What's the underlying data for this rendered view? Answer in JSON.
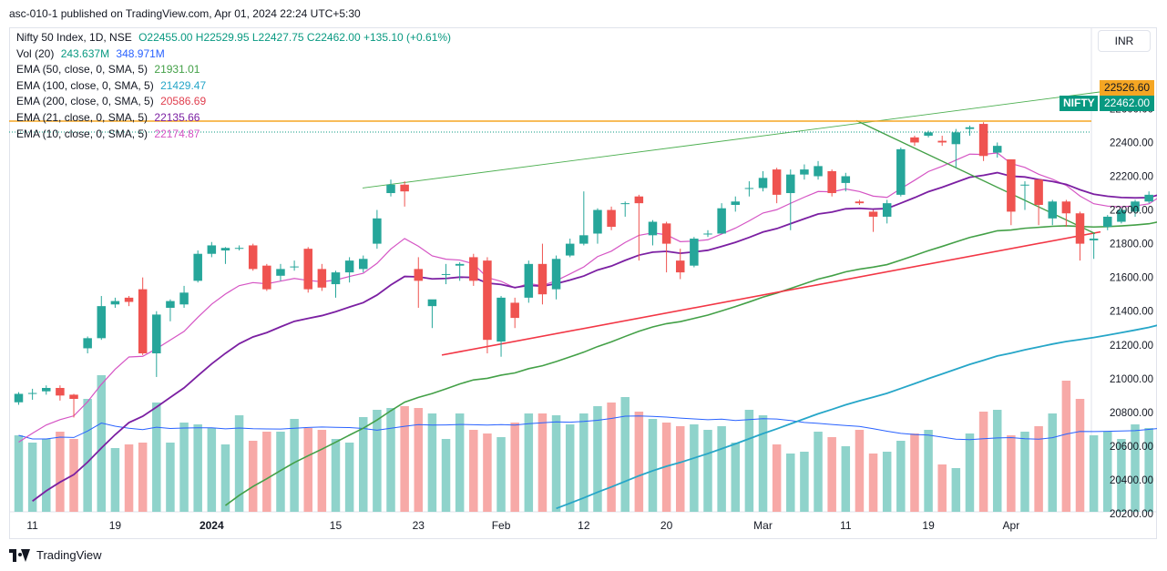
{
  "header": {
    "published": "asc-010-1 published on TradingView.com, Apr 01, 2024 22:24 UTC+5:30"
  },
  "currency": "INR",
  "legend": {
    "ohlc_label": "Nifty 50 Index, 1D, NSE",
    "ohlc_values": "O22455.00  H22529.95  L22427.75  C22462.00  +135.10 (+0.61%)",
    "vol": {
      "label": "Vol (20)",
      "v1": "243.637M",
      "v2": "348.971M"
    },
    "ema": [
      {
        "label": "EMA (50, close, 0, SMA, 5)",
        "value": "21931.01",
        "color": "#43a047"
      },
      {
        "label": "EMA (100, close, 0, SMA, 5)",
        "value": "21429.47",
        "color": "#26a6c8"
      },
      {
        "label": "EMA (200, close, 0, SMA, 5)",
        "value": "20586.69",
        "color": "#e03e4e"
      },
      {
        "label": "EMA (21, close, 0, SMA, 5)",
        "value": "22135.66",
        "color": "#7b1fa2"
      },
      {
        "label": "EMA (10, close, 0, SMA, 5)",
        "value": "22174.87",
        "color": "#d554c4"
      }
    ]
  },
  "price_tags": {
    "resistance": "22526.60",
    "symbol": "NIFTY",
    "last": "22462.00"
  },
  "footer": {
    "brand": "TradingView"
  },
  "colors": {
    "up": "#26a69a",
    "down": "#ef5350",
    "vol_up": "#8fd3cb",
    "vol_down": "#f7a9a7",
    "resistance": "#f5a623",
    "trend_up": "#f23645",
    "upper_channel": "#4caf50",
    "down_trend": "#43a047",
    "vol_ma": "#2962ff"
  },
  "chart_data": {
    "type": "candlestick",
    "symbol": "Nifty 50 Index",
    "interval": "1D",
    "y_ticks": [
      20200,
      20400,
      20600,
      20800,
      21000,
      21200,
      21400,
      21600,
      21800,
      22000,
      22200,
      22400,
      22600
    ],
    "y_tick_labels": [
      "20200.00",
      "20400.00",
      "20600.00",
      "20800.00",
      "21000.00",
      "21200.00",
      "21400.00",
      "21600.00",
      "21800.00",
      "22000.00",
      "22200.00",
      "22400.00",
      "22600.00"
    ],
    "x_ticks": [
      {
        "index": 1,
        "label": "11"
      },
      {
        "index": 7,
        "label": "19"
      },
      {
        "index": 14,
        "label": "2024"
      },
      {
        "index": 23,
        "label": "15"
      },
      {
        "index": 29,
        "label": "23"
      },
      {
        "index": 35,
        "label": "Feb"
      },
      {
        "index": 41,
        "label": "12"
      },
      {
        "index": 47,
        "label": "20"
      },
      {
        "index": 54,
        "label": "Mar"
      },
      {
        "index": 60,
        "label": "11"
      },
      {
        "index": 66,
        "label": "19"
      },
      {
        "index": 72,
        "label": "Apr"
      }
    ],
    "candles": [
      [
        20860,
        20910,
        20845,
        20920
      ],
      [
        20910,
        20915,
        20875,
        20940
      ],
      [
        20925,
        20945,
        20905,
        20960
      ],
      [
        20945,
        20900,
        20870,
        20960
      ],
      [
        20905,
        20880,
        20770,
        20910
      ],
      [
        21180,
        21240,
        21150,
        21250
      ],
      [
        21240,
        21430,
        21230,
        21490
      ],
      [
        21440,
        21460,
        21420,
        21480
      ],
      [
        21480,
        21455,
        21430,
        21490
      ],
      [
        21530,
        21150,
        21140,
        21600
      ],
      [
        21150,
        21380,
        21010,
        21400
      ],
      [
        21420,
        21460,
        21340,
        21470
      ],
      [
        21440,
        21510,
        21420,
        21550
      ],
      [
        21580,
        21740,
        21570,
        21760
      ],
      [
        21740,
        21790,
        21720,
        21810
      ],
      [
        21760,
        21775,
        21680,
        21780
      ],
      [
        21770,
        21775,
        21760,
        21790
      ],
      [
        21790,
        21650,
        21640,
        21800
      ],
      [
        21670,
        21530,
        21520,
        21680
      ],
      [
        21610,
        21650,
        21580,
        21680
      ],
      [
        21660,
        21665,
        21640,
        21700
      ],
      [
        21770,
        21530,
        21510,
        21780
      ],
      [
        21650,
        21540,
        21520,
        21680
      ],
      [
        21560,
        21630,
        21480,
        21640
      ],
      [
        21630,
        21700,
        21570,
        21720
      ],
      [
        21650,
        21710,
        21630,
        21730
      ],
      [
        21800,
        21950,
        21770,
        22000
      ],
      [
        22100,
        22150,
        22080,
        22180
      ],
      [
        22150,
        22110,
        22020,
        22170
      ],
      [
        21650,
        21580,
        21420,
        21720
      ],
      [
        21430,
        21470,
        21300,
        21460
      ],
      [
        21620,
        21620,
        21560,
        21680
      ],
      [
        21670,
        21680,
        21580,
        21690
      ],
      [
        21720,
        21580,
        21550,
        21740
      ],
      [
        21700,
        21230,
        21150,
        21720
      ],
      [
        21220,
        21480,
        21130,
        21490
      ],
      [
        21450,
        21360,
        21300,
        21480
      ],
      [
        21480,
        21680,
        21450,
        21700
      ],
      [
        21680,
        21500,
        21440,
        21800
      ],
      [
        21530,
        21710,
        21470,
        21730
      ],
      [
        21730,
        21800,
        21720,
        21830
      ],
      [
        21800,
        21850,
        21790,
        22110
      ],
      [
        21860,
        22000,
        21800,
        22010
      ],
      [
        22000,
        21900,
        21880,
        22020
      ],
      [
        22040,
        22040,
        21960,
        22050
      ],
      [
        22080,
        22040,
        21700,
        22090
      ],
      [
        21850,
        21930,
        21790,
        21940
      ],
      [
        21920,
        21800,
        21630,
        21930
      ],
      [
        21700,
        21630,
        21590,
        21770
      ],
      [
        21670,
        21830,
        21660,
        21840
      ],
      [
        21860,
        21860,
        21840,
        21880
      ],
      [
        21860,
        22010,
        21860,
        22040
      ],
      [
        22030,
        22050,
        21990,
        22080
      ],
      [
        22130,
        22130,
        22080,
        22170
      ],
      [
        22130,
        22190,
        22110,
        22230
      ],
      [
        22240,
        22090,
        22040,
        22250
      ],
      [
        22100,
        22210,
        21880,
        22240
      ],
      [
        22210,
        22240,
        22180,
        22270
      ],
      [
        22200,
        22260,
        22180,
        22290
      ],
      [
        22230,
        22100,
        22080,
        22240
      ],
      [
        22160,
        22200,
        22110,
        22220
      ],
      [
        22050,
        22040,
        22030,
        22060
      ],
      [
        21990,
        21960,
        21870,
        22000
      ],
      [
        21960,
        22040,
        21920,
        22060
      ],
      [
        22090,
        22360,
        22080,
        22370
      ],
      [
        22430,
        22400,
        22380,
        22440
      ],
      [
        22440,
        22460,
        22430,
        22470
      ],
      [
        22410,
        22400,
        22380,
        22440
      ],
      [
        22390,
        22460,
        22250,
        22480
      ],
      [
        22480,
        22490,
        22440,
        22500
      ],
      [
        22510,
        22320,
        22290,
        22520
      ],
      [
        22340,
        22380,
        22310,
        22400
      ],
      [
        22300,
        21990,
        21910,
        22300
      ],
      [
        22150,
        22150,
        22000,
        22170
      ],
      [
        22180,
        22030,
        21910,
        22180
      ],
      [
        21950,
        22050,
        21910,
        22060
      ],
      [
        22050,
        21980,
        21900,
        22060
      ],
      [
        21980,
        21800,
        21700,
        21990
      ],
      [
        21820,
        21830,
        21710,
        21860
      ],
      [
        21900,
        21960,
        21880,
        21970
      ],
      [
        21930,
        22000,
        21920,
        22010
      ],
      [
        21990,
        22050,
        21960,
        22060
      ],
      [
        22050,
        22090,
        22040,
        22110
      ],
      [
        22120,
        22330,
        22110,
        22350
      ],
      [
        22455,
        22462,
        22428,
        22530
      ]
    ],
    "volume": [
      0.42,
      0.38,
      0.4,
      0.44,
      0.4,
      0.62,
      0.75,
      0.35,
      0.37,
      0.38,
      0.6,
      0.38,
      0.49,
      0.48,
      0.46,
      0.37,
      0.53,
      0.39,
      0.44,
      0.44,
      0.51,
      0.46,
      0.45,
      0.4,
      0.38,
      0.52,
      0.56,
      0.57,
      0.58,
      0.57,
      0.54,
      0.4,
      0.54,
      0.45,
      0.43,
      0.41,
      0.49,
      0.54,
      0.54,
      0.53,
      0.48,
      0.54,
      0.58,
      0.6,
      0.63,
      0.55,
      0.51,
      0.49,
      0.47,
      0.48,
      0.45,
      0.47,
      0.38,
      0.56,
      0.53,
      0.37,
      0.32,
      0.33,
      0.44,
      0.41,
      0.36,
      0.45,
      0.32,
      0.33,
      0.39,
      0.43,
      0.45,
      0.26,
      0.24,
      0.43,
      0.55,
      0.56,
      0.42,
      0.44,
      0.47,
      0.54,
      0.72,
      0.62,
      0.42,
      0.44,
      0.4,
      0.48,
      0.46,
      0.48,
      0.47
    ]
  }
}
